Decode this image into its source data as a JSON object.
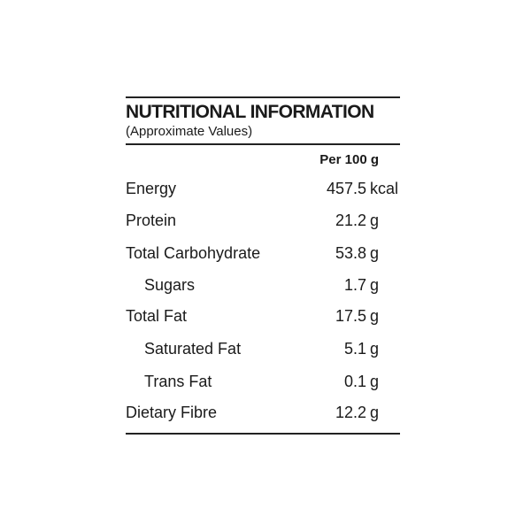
{
  "title": "NUTRITIONAL INFORMATION",
  "subtitle": "(Approximate Values)",
  "column_header": "Per 100 g",
  "rows": [
    {
      "label": "Energy",
      "value": "457.5",
      "unit": "kcal",
      "indent": false
    },
    {
      "label": "Protein",
      "value": "21.2",
      "unit": "g",
      "indent": false
    },
    {
      "label": "Total Carbohydrate",
      "value": "53.8",
      "unit": "g",
      "indent": false
    },
    {
      "label": "Sugars",
      "value": "1.7",
      "unit": "g",
      "indent": true
    },
    {
      "label": "Total Fat",
      "value": "17.5",
      "unit": "g",
      "indent": false
    },
    {
      "label": "Saturated Fat",
      "value": "5.1",
      "unit": "g",
      "indent": true
    },
    {
      "label": "Trans Fat",
      "value": "0.1",
      "unit": "g",
      "indent": true
    },
    {
      "label": "Dietary Fibre",
      "value": "12.2",
      "unit": "g",
      "indent": false
    }
  ]
}
